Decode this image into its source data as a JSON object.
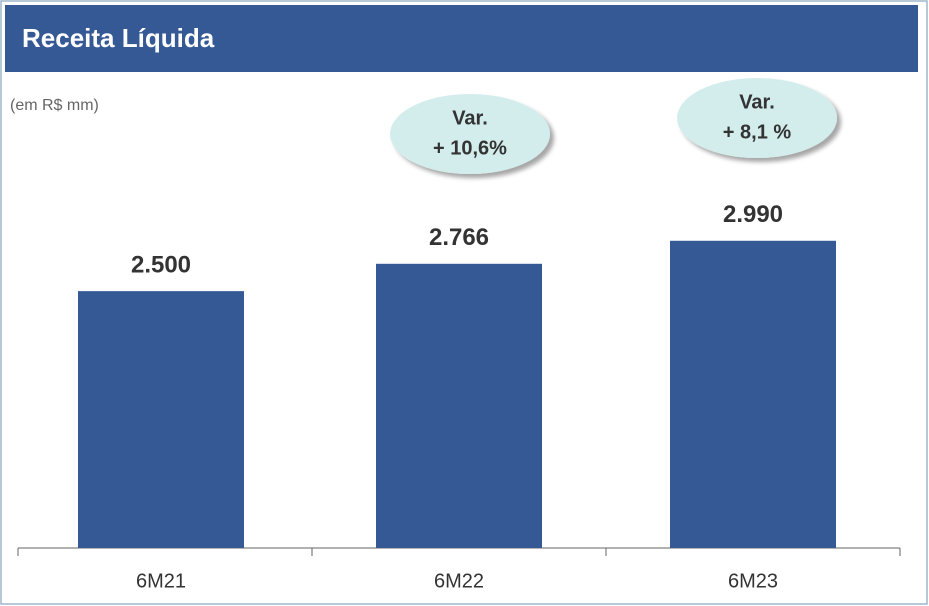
{
  "chart_data": {
    "type": "bar",
    "title": "Receita Líquida",
    "subtitle": "(em R$ mm)",
    "categories": [
      "6M21",
      "6M22",
      "6M23"
    ],
    "values": [
      2500,
      2766,
      2990
    ],
    "value_labels": [
      "2.500",
      "2.766",
      "2.990"
    ],
    "color": "#345995",
    "ylim": [
      0,
      4000
    ],
    "annotations": [
      [
        "Var.",
        "+ 10,6%"
      ],
      [
        "Var.",
        "+ 8,1 %"
      ]
    ]
  }
}
